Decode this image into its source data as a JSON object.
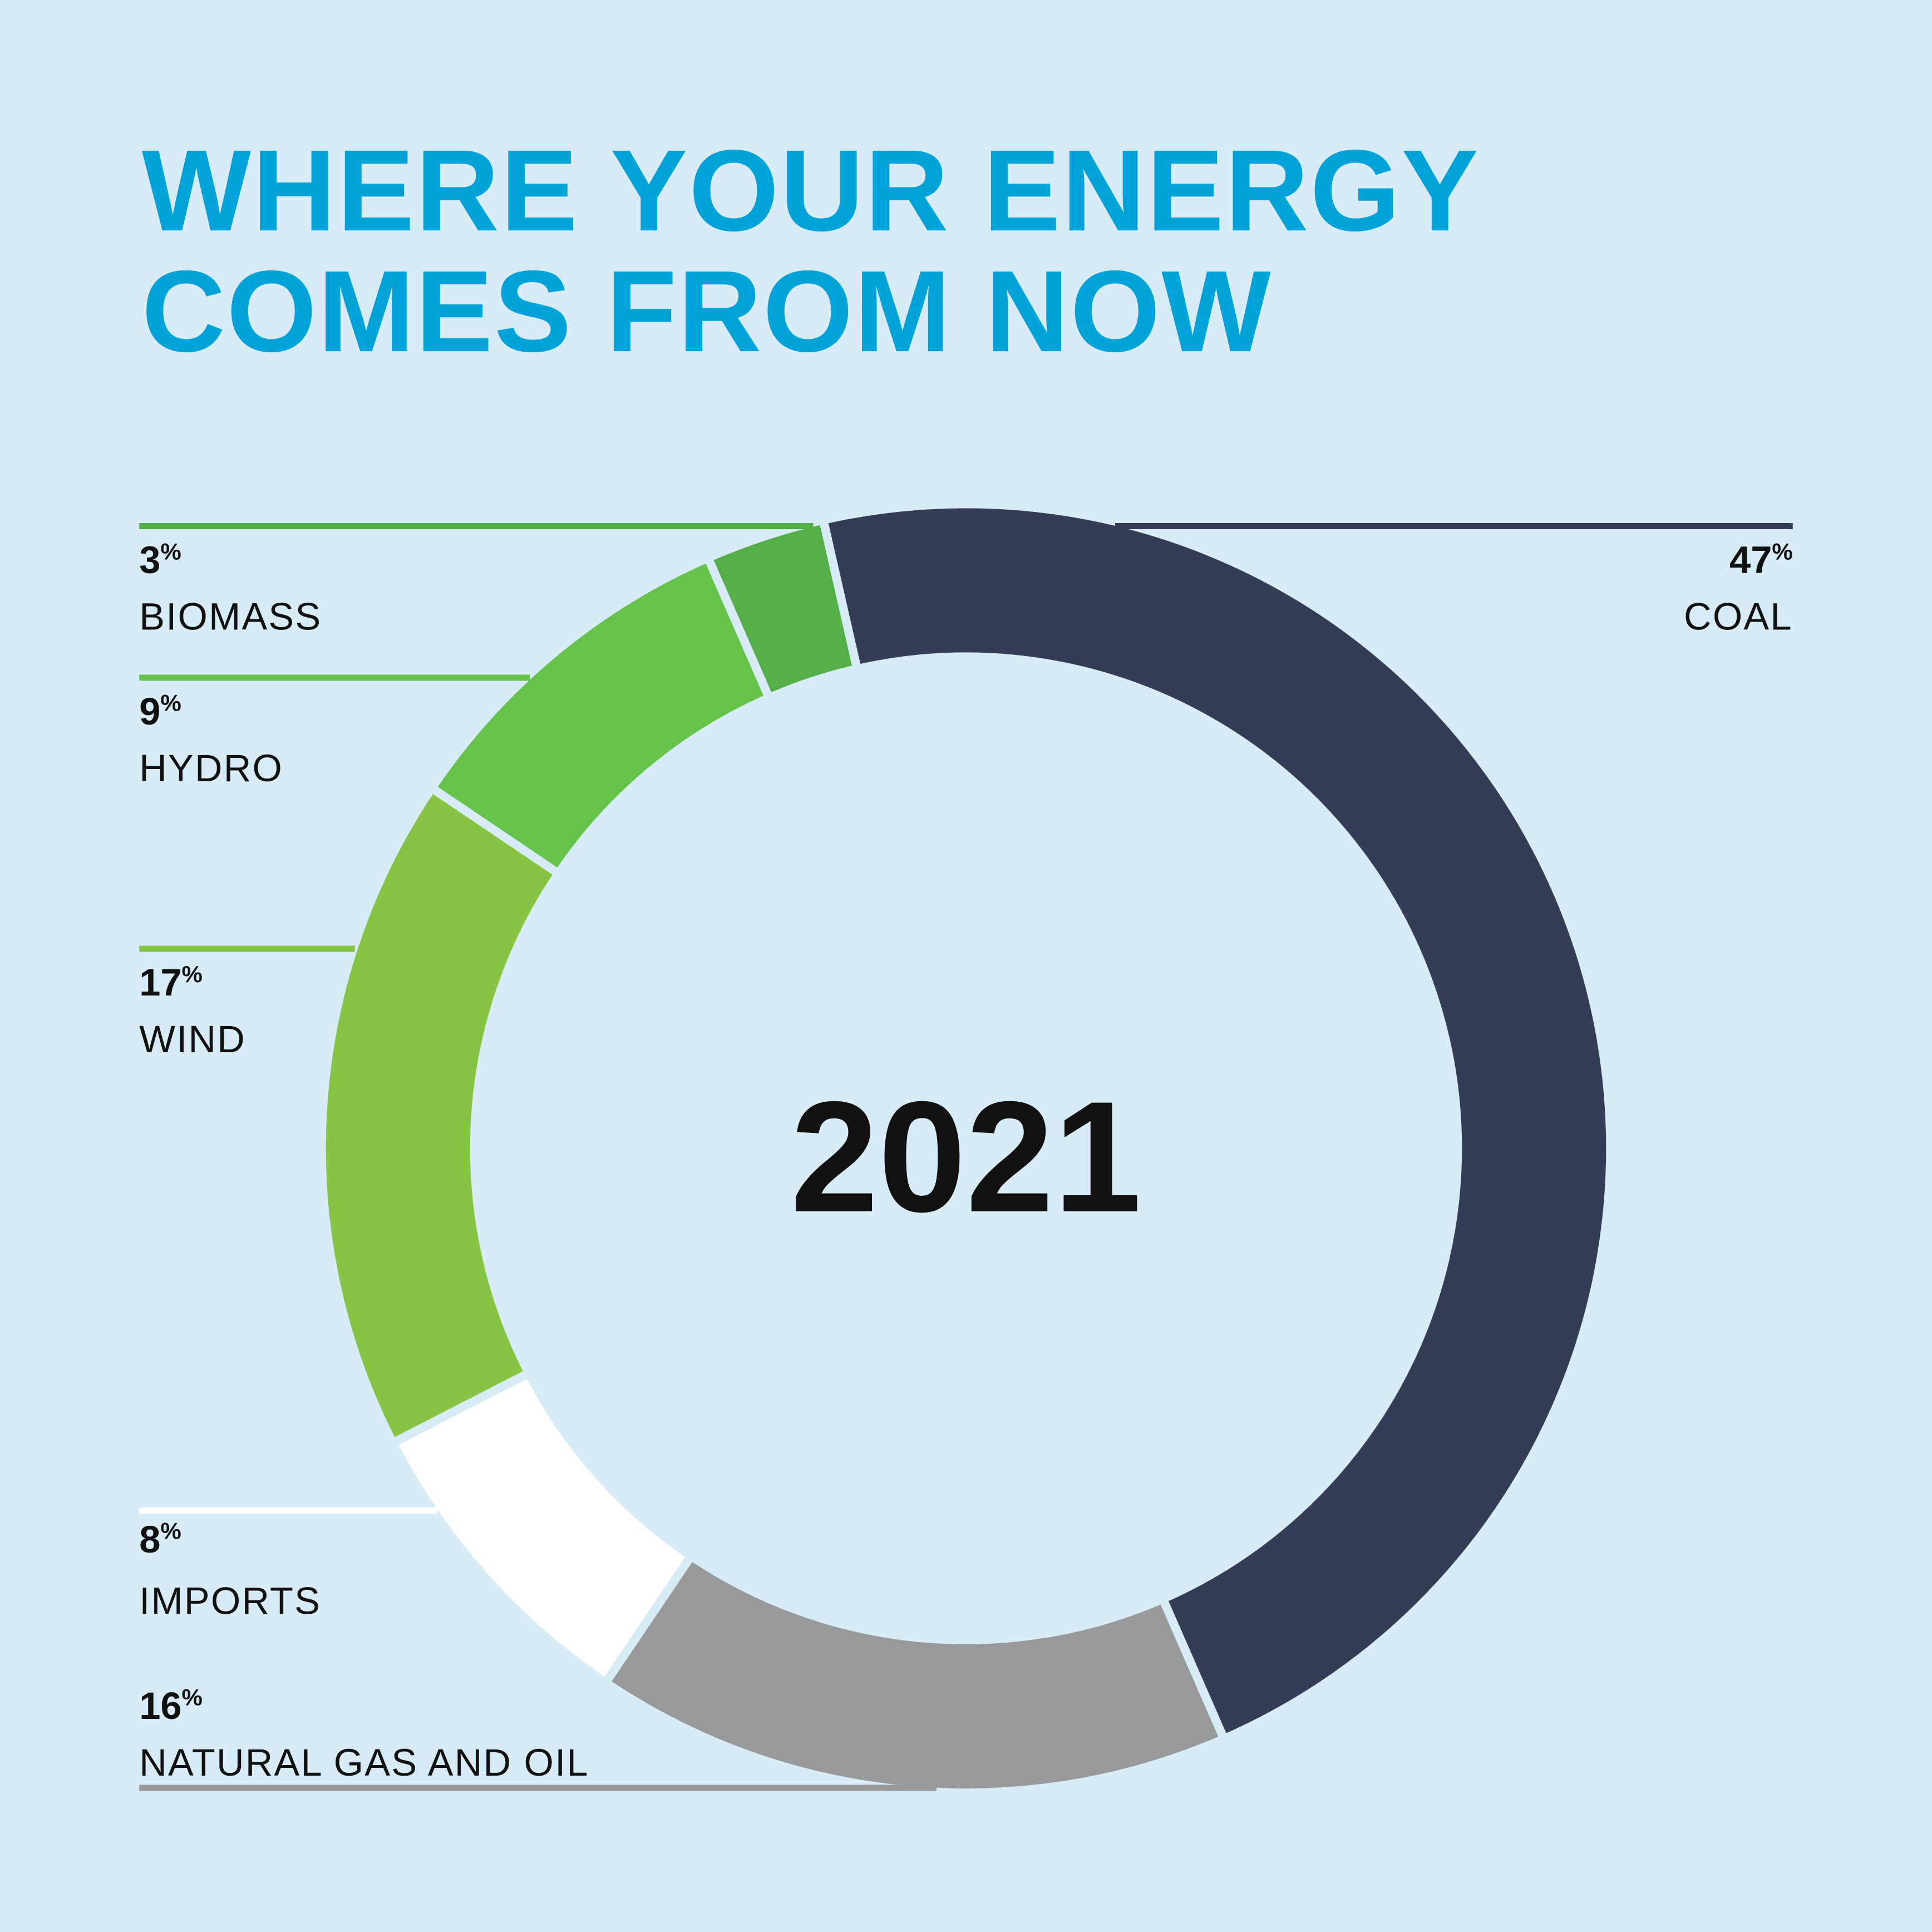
{
  "chart_data": {
    "type": "donut",
    "title": "WHERE YOUR ENERGY COMES FROM NOW",
    "center_label": "2021",
    "categories": [
      "COAL",
      "NATURAL GAS AND OIL",
      "IMPORTS",
      "WIND",
      "HYDRO",
      "BIOMASS"
    ],
    "values": [
      47,
      16,
      8,
      17,
      9,
      3
    ],
    "value_labels": [
      "47%",
      "16%",
      "8%",
      "17%",
      "9%",
      "3%"
    ],
    "colors": [
      "#343d56",
      "#97999b",
      "#ffffff",
      "#86c543",
      "#66c34a",
      "#55af48"
    ]
  }
}
